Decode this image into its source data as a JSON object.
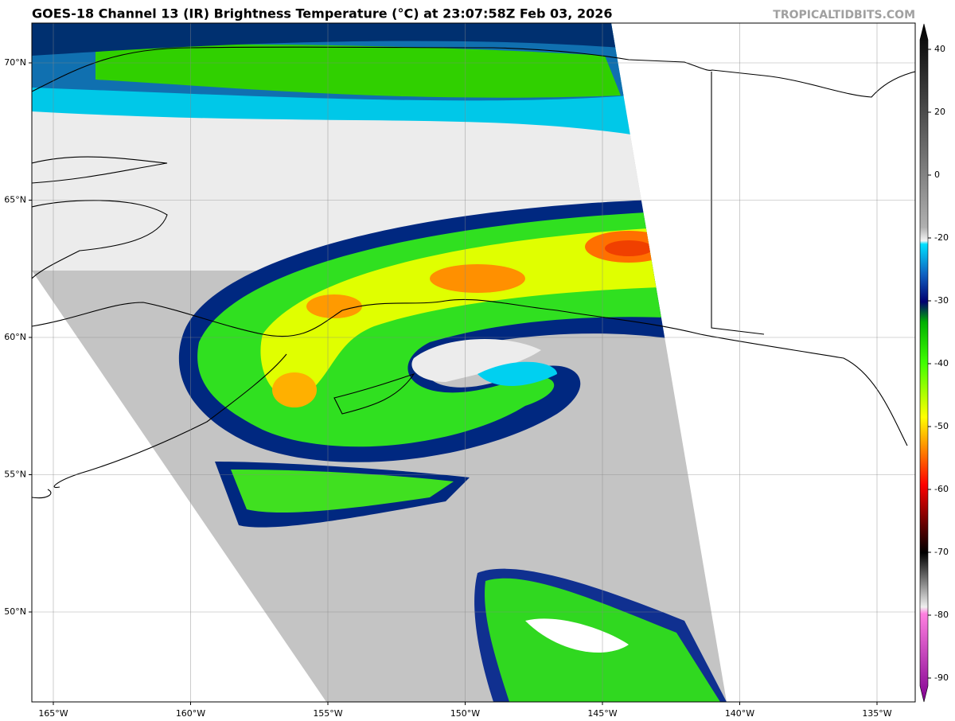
{
  "header": {
    "title": "GOES-18 Channel 13 (IR) Brightness Temperature (°C) at 23:07:58Z Feb 03, 2026",
    "credit": "TROPICALTIDBITS.COM"
  },
  "map": {
    "lat_labels": [
      "70°N",
      "65°N",
      "60°N",
      "55°N",
      "50°N"
    ],
    "lon_labels": [
      "165°W",
      "160°W",
      "155°W",
      "150°W",
      "145°W",
      "140°W",
      "135°W"
    ]
  },
  "colorbar": {
    "ticks": [
      40,
      20,
      0,
      -20,
      -30,
      -40,
      -50,
      -60,
      -70,
      -80,
      -90
    ]
  }
}
